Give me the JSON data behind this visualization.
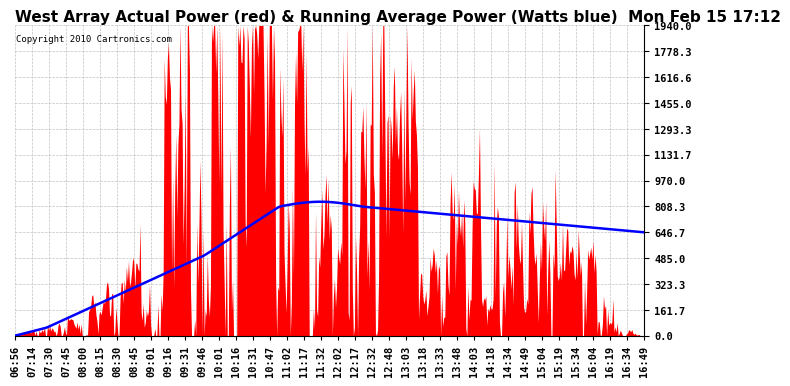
{
  "title": "West Array Actual Power (red) & Running Average Power (Watts blue)  Mon Feb 15 17:12",
  "copyright": "Copyright 2010 Cartronics.com",
  "ylabel_right": [
    "1940.0",
    "1778.3",
    "1616.6",
    "1455.0",
    "1293.3",
    "1131.7",
    "970.0",
    "808.3",
    "646.7",
    "485.0",
    "323.3",
    "161.7",
    "0.0"
  ],
  "yticks": [
    1940.0,
    1778.3,
    1616.6,
    1455.0,
    1293.3,
    1131.7,
    970.0,
    808.3,
    646.7,
    485.0,
    323.3,
    161.7,
    0.0
  ],
  "ymax": 1940.0,
  "ymin": 0.0,
  "xtick_labels": [
    "06:56",
    "07:14",
    "07:30",
    "07:45",
    "08:00",
    "08:15",
    "08:30",
    "08:45",
    "09:01",
    "09:16",
    "09:31",
    "09:46",
    "10:01",
    "10:16",
    "10:31",
    "10:47",
    "11:02",
    "11:17",
    "11:32",
    "12:02",
    "12:17",
    "12:32",
    "12:48",
    "13:03",
    "13:18",
    "13:33",
    "13:48",
    "14:03",
    "14:18",
    "14:34",
    "14:49",
    "15:04",
    "15:19",
    "15:34",
    "16:04",
    "16:19",
    "16:34",
    "16:49"
  ],
  "background_color": "#ffffff",
  "plot_bg_color": "#ffffff",
  "bar_color": "#ff0000",
  "avg_color": "#0000ff",
  "grid_color": "#bbbbbb",
  "title_fontsize": 11,
  "tick_fontsize": 7.5
}
